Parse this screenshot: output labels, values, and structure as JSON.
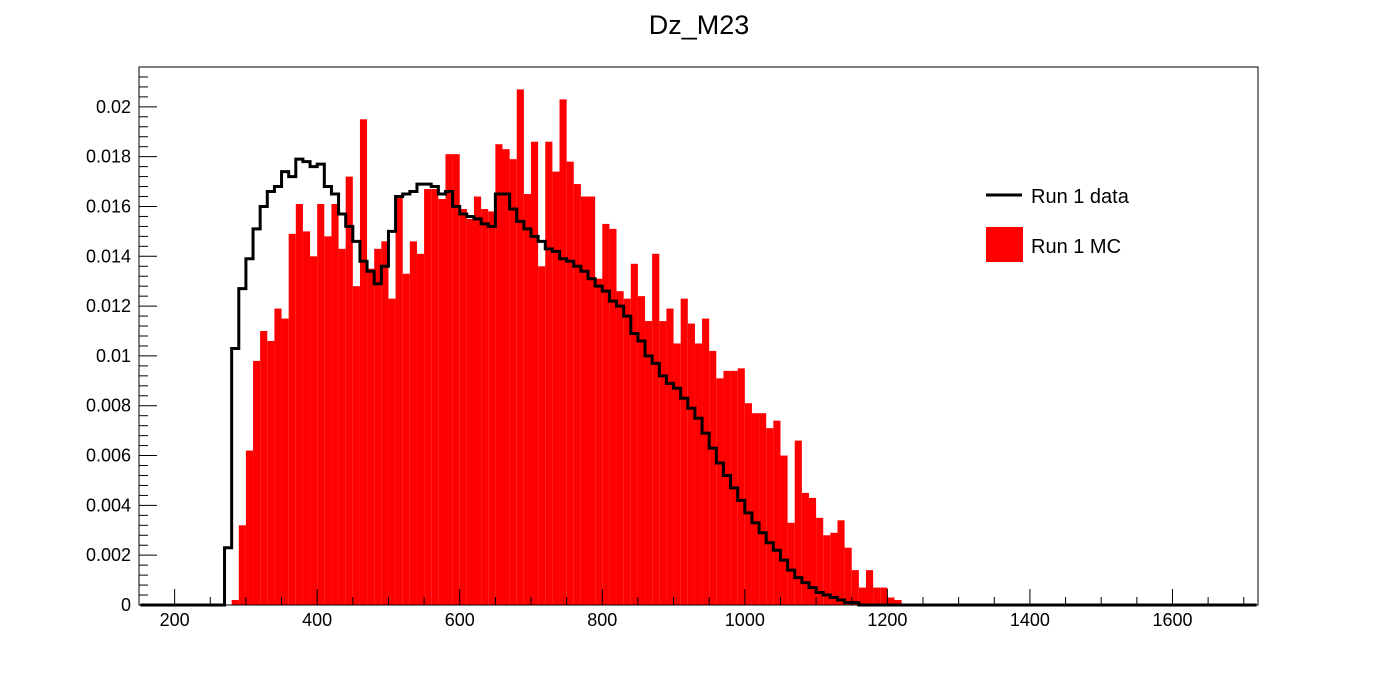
{
  "chart_data": {
    "type": "bar",
    "title": "Dz_M23",
    "xlabel": "",
    "ylabel": "",
    "xlim": [
      150,
      1720
    ],
    "ylim": [
      0,
      0.0216
    ],
    "bin_width": 10,
    "x_ticks": [
      200,
      400,
      600,
      800,
      1000,
      1200,
      1400,
      1600
    ],
    "x_tick_labels": [
      "200",
      "400",
      "600",
      "800",
      "1000",
      "1200",
      "1400",
      "1600"
    ],
    "y_ticks": [
      0,
      0.002,
      0.004,
      0.006,
      0.008,
      0.01,
      0.012,
      0.014,
      0.016,
      0.018,
      0.02
    ],
    "y_tick_labels": [
      "0",
      "0.002",
      "0.004",
      "0.006",
      "0.008",
      "0.01",
      "0.012",
      "0.014",
      "0.016",
      "0.018",
      "0.02"
    ],
    "grid": false,
    "legend_position": "top-right",
    "series": [
      {
        "name": "Run 1 MC",
        "style": "filled-histogram",
        "color": "#ff0000",
        "x_start": 270,
        "values": [
          0,
          0.0002,
          0.0032,
          0.0062,
          0.0098,
          0.011,
          0.0106,
          0.0119,
          0.0115,
          0.0149,
          0.0161,
          0.015,
          0.014,
          0.0161,
          0.0148,
          0.0161,
          0.0143,
          0.0172,
          0.0128,
          0.0195,
          0.0135,
          0.0143,
          0.0146,
          0.0123,
          0.0164,
          0.0133,
          0.0146,
          0.0141,
          0.0167,
          0.0167,
          0.0163,
          0.0181,
          0.0181,
          0.0159,
          0.0155,
          0.0164,
          0.0159,
          0.0158,
          0.0185,
          0.0183,
          0.0179,
          0.0207,
          0.0165,
          0.0186,
          0.0136,
          0.0186,
          0.0174,
          0.0203,
          0.0178,
          0.0169,
          0.0164,
          0.0164,
          0.0131,
          0.0153,
          0.0151,
          0.0126,
          0.0123,
          0.0137,
          0.0124,
          0.0114,
          0.0141,
          0.0114,
          0.0119,
          0.0105,
          0.0123,
          0.0113,
          0.0105,
          0.0115,
          0.0102,
          0.0091,
          0.0094,
          0.0094,
          0.0095,
          0.0081,
          0.0077,
          0.0077,
          0.0071,
          0.0074,
          0.006,
          0.0033,
          0.0066,
          0.0045,
          0.0043,
          0.0035,
          0.0028,
          0.0029,
          0.0034,
          0.0023,
          0.0014,
          0.0007,
          0.0014,
          0.0007,
          0.0007,
          0.0003,
          0.0002,
          0
        ]
      },
      {
        "name": "Run 1 data",
        "style": "step-line",
        "color": "#000000",
        "x_start": 270,
        "values": [
          0.0023,
          0.0103,
          0.0127,
          0.0139,
          0.0151,
          0.016,
          0.0166,
          0.0168,
          0.0174,
          0.0172,
          0.0179,
          0.0178,
          0.0176,
          0.0177,
          0.0168,
          0.0165,
          0.0157,
          0.0152,
          0.0146,
          0.0138,
          0.0134,
          0.0129,
          0.0136,
          0.015,
          0.0164,
          0.0165,
          0.0166,
          0.0169,
          0.0169,
          0.0168,
          0.0165,
          0.0166,
          0.016,
          0.0157,
          0.0156,
          0.0155,
          0.0153,
          0.0152,
          0.0165,
          0.0165,
          0.0159,
          0.0154,
          0.0151,
          0.0148,
          0.0146,
          0.0143,
          0.0142,
          0.0139,
          0.0138,
          0.0136,
          0.0134,
          0.0131,
          0.0128,
          0.0126,
          0.0122,
          0.012,
          0.0116,
          0.0109,
          0.0106,
          0.01,
          0.0097,
          0.0092,
          0.0089,
          0.0087,
          0.0083,
          0.0079,
          0.0075,
          0.0069,
          0.0063,
          0.0057,
          0.0052,
          0.0047,
          0.0042,
          0.0037,
          0.0033,
          0.0029,
          0.0025,
          0.0022,
          0.0018,
          0.0014,
          0.0011,
          0.0009,
          0.0007,
          0.0005,
          0.0004,
          0.0003,
          0.0002,
          0.0001,
          0.0001,
          0
        ]
      }
    ]
  }
}
